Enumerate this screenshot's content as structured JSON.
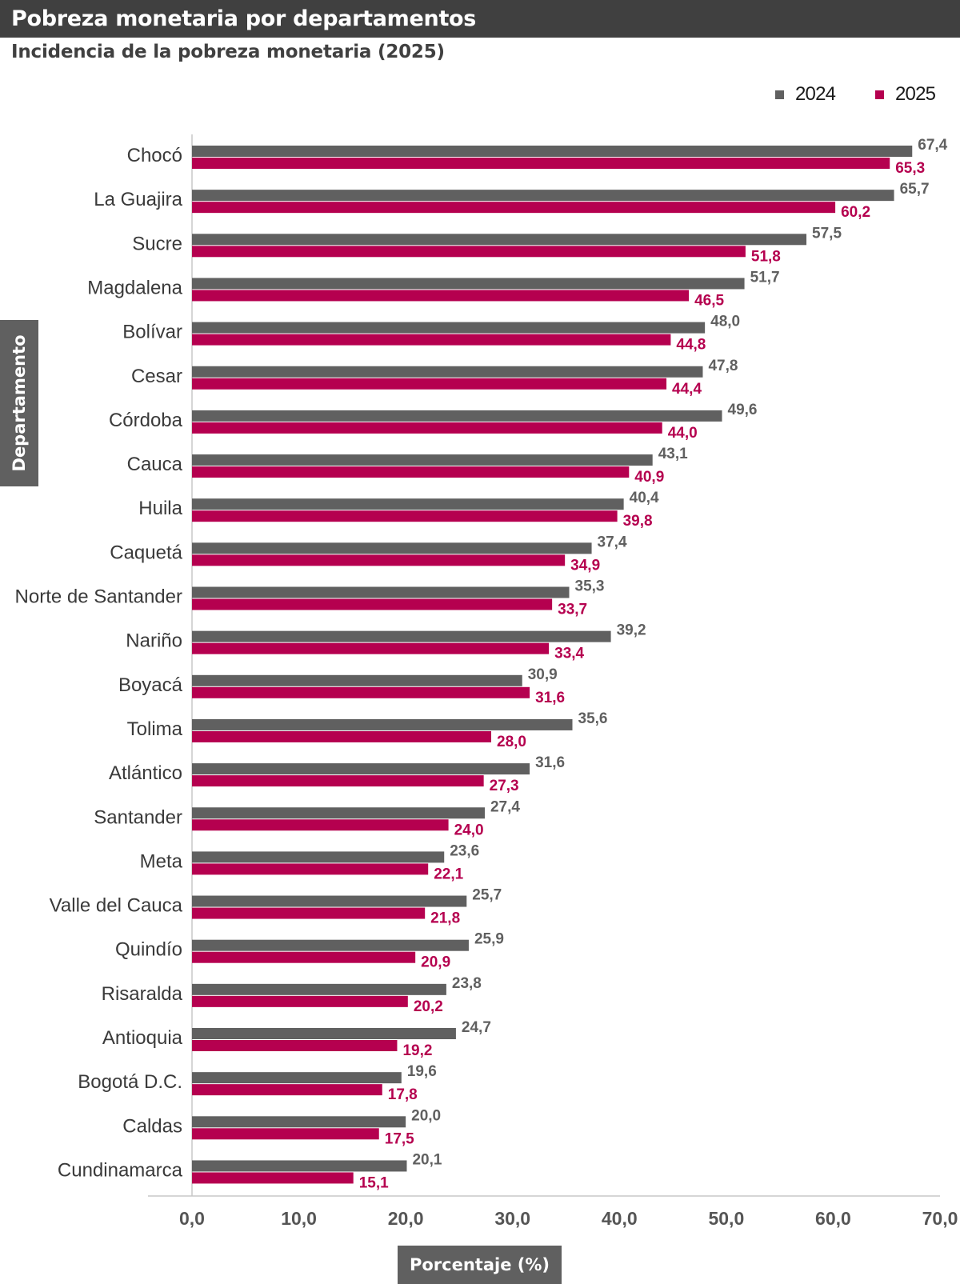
{
  "title": "Pobreza monetaria por departamentos",
  "subtitle": "Incidencia de la pobreza monetaria (2025)",
  "y_axis_title": "Departamento",
  "x_axis_title": "Porcentaje (%)",
  "colors": {
    "2024": "#606060",
    "2025": "#b5004f",
    "title_bg": "#404040"
  },
  "legend": [
    {
      "label": "2024",
      "color": "#606060"
    },
    {
      "label": "2025",
      "color": "#b5004f"
    }
  ],
  "chart_data": {
    "type": "bar",
    "orientation": "horizontal",
    "title": "Pobreza monetaria por departamentos",
    "subtitle": "Incidencia de la pobreza monetaria (2025)",
    "xlabel": "Porcentaje (%)",
    "ylabel": "Departamento",
    "xlim": [
      0,
      70
    ],
    "xticks": [
      "0,0",
      "10,0",
      "20,0",
      "30,0",
      "40,0",
      "50,0",
      "60,0",
      "70,0"
    ],
    "grid": false,
    "legend_position": "top-right",
    "categories": [
      "Chocó",
      "La Guajira",
      "Sucre",
      "Magdalena",
      "Bolívar",
      "Cesar",
      "Córdoba",
      "Cauca",
      "Huila",
      "Caquetá",
      "Norte de Santander",
      "Nariño",
      "Boyacá",
      "Tolima",
      "Atlántico",
      "Santander",
      "Meta",
      "Valle del Cauca",
      "Quindío",
      "Risaralda",
      "Antioquia",
      "Bogotá D.C.",
      "Caldas",
      "Cundinamarca"
    ],
    "series": [
      {
        "name": "2024",
        "color": "#606060",
        "values": [
          67.4,
          65.7,
          57.5,
          51.7,
          48.0,
          47.8,
          49.6,
          43.1,
          40.4,
          37.4,
          35.3,
          39.2,
          30.9,
          35.6,
          31.6,
          27.4,
          23.6,
          25.7,
          25.9,
          23.8,
          24.7,
          19.6,
          20.0,
          20.1
        ],
        "labels": [
          "67,4",
          "65,7",
          "57,5",
          "51,7",
          "48,0",
          "47,8",
          "49,6",
          "43,1",
          "40,4",
          "37,4",
          "35,3",
          "39,2",
          "30,9",
          "35,6",
          "31,6",
          "27,4",
          "23,6",
          "25,7",
          "25,9",
          "23,8",
          "24,7",
          "19,6",
          "20,0",
          "20,1"
        ]
      },
      {
        "name": "2025",
        "color": "#b5004f",
        "values": [
          65.3,
          60.2,
          51.8,
          46.5,
          44.8,
          44.4,
          44.0,
          40.9,
          39.8,
          34.9,
          33.7,
          33.4,
          31.6,
          28.0,
          27.3,
          24.0,
          22.1,
          21.8,
          20.9,
          20.2,
          19.2,
          17.8,
          17.5,
          15.1
        ],
        "labels": [
          "65,3",
          "60,2",
          "51,8",
          "46,5",
          "44,8",
          "44,4",
          "44,0",
          "40,9",
          "39,8",
          "34,9",
          "33,7",
          "33,4",
          "31,6",
          "28,0",
          "27,3",
          "24,0",
          "22,1",
          "21,8",
          "20,9",
          "20,2",
          "19,2",
          "17,8",
          "17,5",
          "15,1"
        ]
      }
    ]
  }
}
